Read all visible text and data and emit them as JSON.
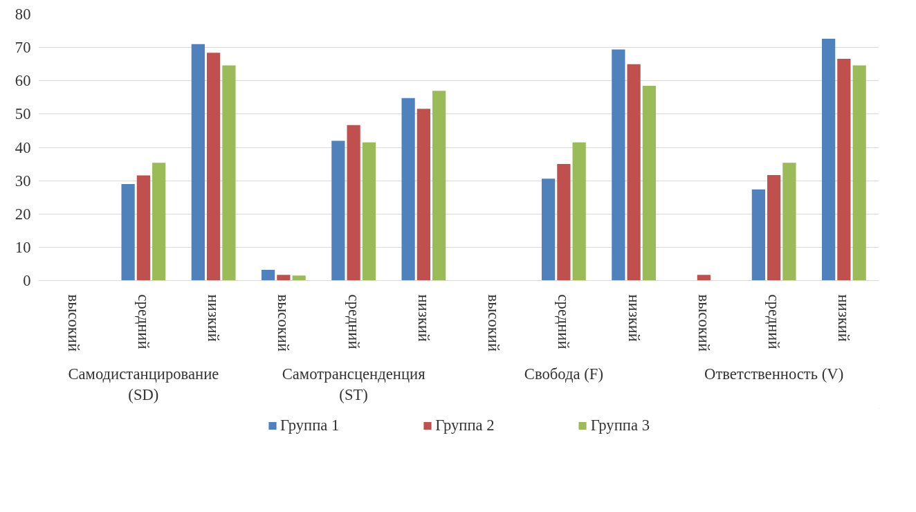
{
  "chart_data": {
    "type": "bar",
    "categories": [
      "высокий",
      "средний",
      "низкий",
      "высокий",
      "средний",
      "низкий",
      "высокий",
      "средний",
      "низкий",
      "высокий",
      "средний",
      "низкий"
    ],
    "annotations": [
      "Самодистанцирование\n(SD)",
      "Самотрансценденция\n(ST)",
      "Свобода (F)",
      "Ответственность (V)"
    ],
    "series": [
      {
        "name": "Группа 1",
        "color": "#4f81bd",
        "values": [
          0,
          29,
          71,
          3.2,
          42,
          54.8,
          0,
          30.6,
          69.4,
          0,
          27.4,
          72.6
        ]
      },
      {
        "name": "Группа 2",
        "color": "#c0504d",
        "values": [
          0,
          31.6,
          68.4,
          1.7,
          46.7,
          51.6,
          0,
          35,
          65,
          1.7,
          31.7,
          66.6
        ]
      },
      {
        "name": "Группа 3",
        "color": "#9bbb59",
        "values": [
          0,
          35.4,
          64.6,
          1.5,
          41.5,
          57,
          0,
          41.5,
          58.5,
          0,
          35.4,
          64.6
        ]
      }
    ],
    "ylim": [
      0,
      80
    ],
    "yticks": [
      0,
      10,
      20,
      30,
      40,
      50,
      60,
      70,
      80
    ],
    "grid": "y",
    "legend": "bottom"
  }
}
